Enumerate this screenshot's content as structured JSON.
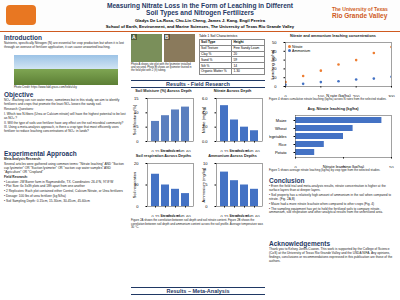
{
  "header": {
    "title_lines": [
      "Measuring Nitrate Loss in the Form of Leaching in Different",
      "Soil Types and Nitrogen Fertilizers"
    ],
    "authors": "Gladys De La-Rosa, Chu-Lin Cheng, James J. Kang, Engil Pereira",
    "affiliation": "School of Earth, Environment, and Marine Sciences, The University of Texas Rio Grande Valley",
    "logo_right_lines": [
      "The University of Texas",
      "Rio Grande Valley"
    ]
  },
  "introduction": {
    "heading": "Introduction",
    "paragraphs": [
      "Nutrients, specifically Nitrogen (N) are essential for crop production but when it is lost through an overuse of fertilizer application, it can cause unwanted leaching."
    ],
    "photo_credit": "Photo Credit: https://www.fabl-grass.com/fields/sky"
  },
  "objective": {
    "heading": "Objective",
    "paragraphs": [
      "NO₃⁻ leaching can ruin water more, sometimes but in this study, we aim to identify fertilizers and crops that promote the least NO₃ losses the sandy soil.",
      "Research Questions:",
      "I. Which two N-fibers (Urea or Calcium nitrate) will have the highest potential to be lost as NO₃⁻?",
      "II. Will the type of soils use fertilizer have any effect on the soil microbial community?",
      "III. Using a meta-analysis approach, is there a crop type that most efficiently uses fertilizer to reduce leaching concentrations of NO₃⁻ in lands?"
    ]
  },
  "approach": {
    "heading": "Experimental Approach",
    "paragraphs": [
      "Meta-analysis Research:",
      "Several articles were gathered using common terms: \"Nitrate leaching\" AND \"Suction cup lysimeter\" OR \"Suction lysimeter\" OR \"suction cup water samples\" AND \"Agriculture\" OR \"Cropland\"",
      "Field Research:",
      "• Location: JW Barrer farm in Raymondville, TX. Coordinates: 26.4°N, 97.8°W",
      "• Plot Size: 6x 3x3ft plots and 18ft apart from one another",
      "• 2 Replicates: Each plot contained either Control, Calcium Nitrate, or Urea fertilizers",
      "• Dosage: 100 lbs of urea fertilizer (kg N/ha)",
      "• Soil Sampling Depth: 0-15cm, 15-30cm, 30-45cm, 45-60cm"
    ]
  },
  "photos": {
    "labels": [
      "A",
      "B"
    ],
    "caption": "Photo A shows site plot with the lysimeter installed and secured. Photo B shows an lysimeter buried in the field plot with 2 (ft) tubing."
  },
  "table": {
    "title": "Table 1 Soil Characteristics",
    "rows": [
      [
        "Soil Type",
        "Height"
      ],
      [
        "Soil Texture",
        "Fine Sandy Loam"
      ],
      [
        "Clay %",
        "20"
      ],
      [
        "Sand %",
        "59"
      ],
      [
        "Silt %",
        "14"
      ],
      [
        "Organic Matter %",
        "1.30"
      ]
    ]
  },
  "results_field": {
    "heading": "Results - Field Research",
    "caption": "Figure 2A shows the correlation between soil depth and soil nitrate content. Figure 2B shows the correlation between soil depth and ammonium content across the soil profile. Average temperature was 30 °C."
  },
  "results_meta": {
    "heading": "Results – Meta-Analysis"
  },
  "meta_captions": [
    "Figure 4 shows cumulative nitrate leaching (kg/ha) across N rates from the selected studies.",
    "Figure 5 shows average nitrate leaching (kg/ha) by crop type from the selected studies."
  ],
  "conclusion": {
    "heading": "Conclusion",
    "paragraphs": [
      "• Even the field trial and meta-analysis results, nitrate concentration is higher at the surface layers than at deeper layers.",
      "• Soil property has a relatively high amount of ammonium in the soil when compared to nitrate. (Fig. 2A,B)",
      "• Maize had a more nitrate leachate when compared to other crops (Fig. 4)",
      "• The sampling equipment has yet to hold the fertilized soils to compare nitrate, ammonium, soil respiration and other analytical results from the unfertilized area."
    ]
  },
  "acknowledgements": {
    "heading": "Acknowledgements",
    "paragraphs": [
      "Thank you to Kelsey Jones-Cuaron. This work is supported by the College of Science (CoS) at the University of Texas Rio Grande Valley and the USDA NIFA. Any opinions, findings, conclusions or recommendations expressed in this publication are those of the authors."
    ]
  },
  "chart_data": [
    {
      "type": "bar",
      "title": "Soil Moisture (%) Across Depth",
      "xlabel": "Depth (cm)",
      "ylabel": "Soil Moisture (%)",
      "categories": [
        "0-15",
        "15-30",
        "30-45",
        "45-60"
      ],
      "values": [
        7,
        9,
        11,
        12
      ],
      "color": "#5b7fbf",
      "ylim": [
        0,
        15
      ],
      "yticks": [
        0,
        5,
        10,
        15
      ]
    },
    {
      "type": "bar",
      "title": "Nitrate Across Depth",
      "xlabel": "Depth (cm)",
      "ylabel": "Nitrate (mg/kg)",
      "categories": [
        "0-15",
        "15-30",
        "30-45",
        "45-60"
      ],
      "values": [
        5,
        3,
        2,
        1.5
      ],
      "color": "#4472c4",
      "ylim": [
        0,
        6
      ],
      "yticks": [
        0,
        2,
        4,
        6
      ]
    },
    {
      "type": "bar",
      "title": "Soil respiration Across Depths",
      "xlabel": "Depth (cm)",
      "ylabel": "Soil respiration",
      "categories": [
        "0-15",
        "15-30",
        "30-45",
        "45-60"
      ],
      "values": [
        15,
        10,
        8,
        6
      ],
      "color": "#4472c4",
      "ylim": [
        0,
        20
      ],
      "yticks": [
        0,
        10,
        20
      ]
    },
    {
      "type": "bar",
      "title": "Ammonium Across Depths",
      "xlabel": "Depth (cm)",
      "ylabel": "Ammonium (mg/kg)",
      "categories": [
        "0-15",
        "15-30",
        "30-45",
        "45-60"
      ],
      "values": [
        8,
        6,
        5,
        4
      ],
      "color": "#4472c4",
      "ylim": [
        0,
        10
      ],
      "yticks": [
        0,
        5,
        10
      ]
    },
    {
      "type": "scatter",
      "title": "Nitrate and ammonium leaching concentrations",
      "xlabel": "N rate (kg/ha)",
      "ylabel": "Leaching (kg/ha)",
      "x": [
        0,
        50,
        100,
        150,
        200,
        250,
        300
      ],
      "series": [
        {
          "name": "Nitrate",
          "color": "#ed7d31",
          "values": [
            5,
            12,
            18,
            25,
            30,
            38,
            45
          ]
        },
        {
          "name": "Ammonium",
          "color": "#4472c4",
          "values": [
            2,
            3,
            5,
            6,
            8,
            9,
            11
          ]
        }
      ],
      "xlim": [
        0,
        300
      ],
      "xticks": [
        0,
        100,
        200,
        300
      ],
      "ylim": [
        0,
        50
      ],
      "yticks": [
        0,
        10,
        20,
        30,
        40,
        50
      ],
      "legend": "top-left"
    },
    {
      "type": "bar",
      "orientation": "horizontal",
      "title": "Avg. Nitrate leaching (kg/ha)",
      "xlabel": "Nitrate leaching (kg/ha)",
      "categories": [
        "Maize",
        "Wheat",
        "Vegetables",
        "Rice",
        "Potato"
      ],
      "values": [
        45,
        30,
        25,
        15,
        10
      ],
      "color": "#4472c4",
      "xlim": [
        0,
        50
      ],
      "xticks": [
        0,
        25,
        50
      ]
    }
  ]
}
